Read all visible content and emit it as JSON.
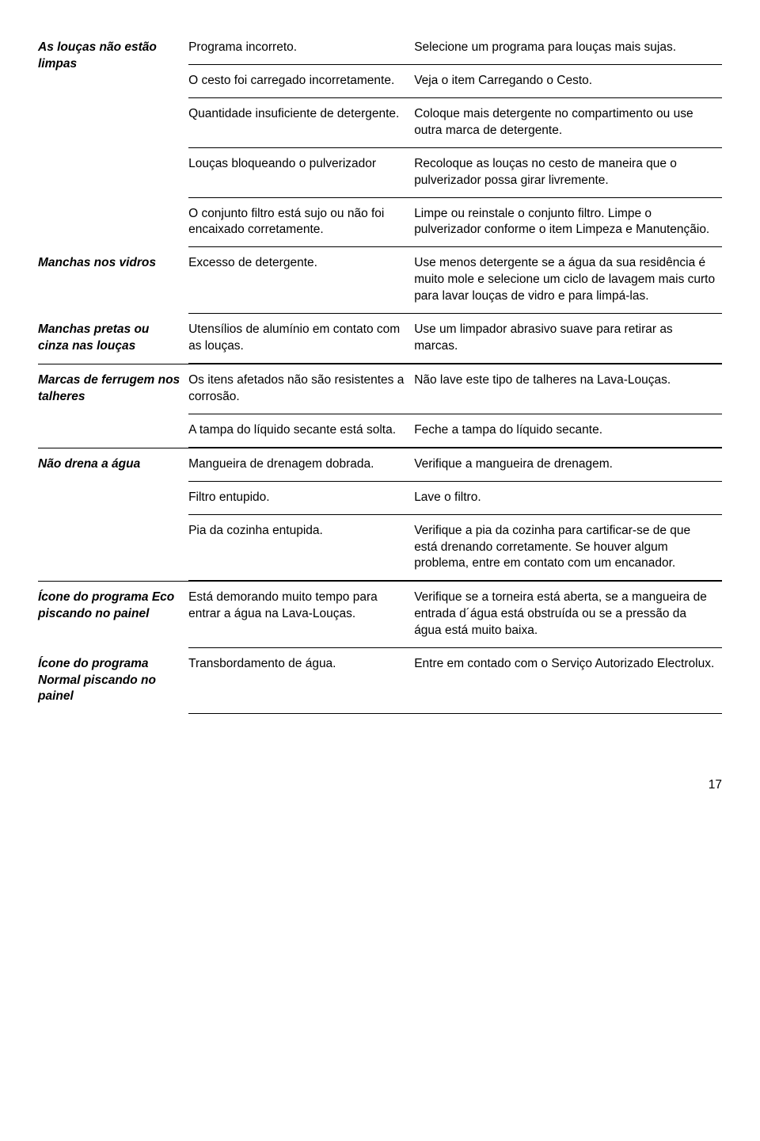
{
  "sections": [
    {
      "problem": "As louças não estão limpas",
      "rows": [
        {
          "cause": "Programa incorreto.",
          "solution": "Selecione um programa para louças mais sujas."
        },
        {
          "cause": "O cesto foi carregado incorretamente.",
          "solution": "Veja o item Carregando o Cesto."
        },
        {
          "cause": "Quantidade insuficiente de detergente.",
          "solution": "Coloque mais detergente no compartimento ou use outra marca de detergente."
        },
        {
          "cause": "Louças bloqueando o pulverizador",
          "solution": "Recoloque as louças no cesto de maneira que o pulverizador possa girar livremente."
        },
        {
          "cause": "O conjunto filtro está sujo ou não foi encaixado corretamente.",
          "solution": "Limpe ou reinstale o conjunto filtro. Limpe o pulverizador conforme o item Limpeza e Manutençãio."
        }
      ]
    },
    {
      "problem": "Manchas nos vidros",
      "rows": [
        {
          "cause": "Excesso de detergente.",
          "solution": "Use menos detergente se a água da sua residência é muito mole e selecione um ciclo de lavagem mais curto para lavar louças de vidro e para limpá-las."
        }
      ]
    },
    {
      "problem": "Manchas pretas ou cinza nas louças",
      "rows": [
        {
          "cause": "Utensílios de alumínio em contato com as louças.",
          "solution": "Use um limpador abrasivo suave para retirar as marcas."
        }
      ]
    },
    {
      "problem": "Marcas de ferrugem nos talheres",
      "rows": [
        {
          "cause": "Os itens afetados não são resistentes a corrosão.",
          "solution": "Não lave este tipo de talheres na Lava-Louças."
        },
        {
          "cause": "A tampa do líquido secante está solta.",
          "solution": "Feche a tampa do líquido secante."
        }
      ]
    },
    {
      "problem": "Não drena a água",
      "rows": [
        {
          "cause": "Mangueira de drenagem dobrada.",
          "solution": "Verifique a mangueira de drenagem."
        },
        {
          "cause": "Filtro entupido.",
          "solution": "Lave o filtro."
        },
        {
          "cause": "Pia da cozinha entupida.",
          "solution": "Verifique a pia da cozinha para cartificar-se de que está drenando corretamente. Se houver algum problema, entre em contato com um encanador."
        }
      ]
    },
    {
      "problem": "Ícone do programa Eco piscando no painel",
      "rows": [
        {
          "cause": "Está demorando muito tempo para entrar a água na Lava-Louças.",
          "solution": "Verifique se a torneira está aberta, se a mangueira de entrada d´água está obstruída ou se a pressão da água está muito baixa."
        }
      ]
    },
    {
      "problem": "Ícone do programa Normal piscando no painel",
      "rows": [
        {
          "cause": "Transbordamento de água.",
          "solution": "Entre em contado com o Serviço Autorizado Electrolux."
        }
      ]
    }
  ],
  "page_number": "17"
}
